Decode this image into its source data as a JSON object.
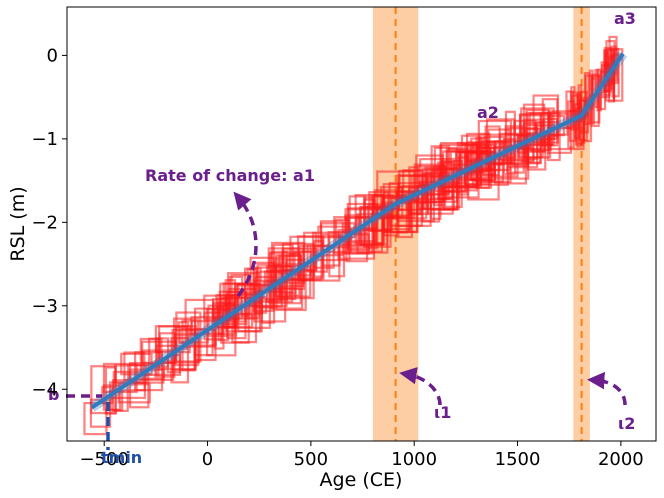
{
  "chart_data": {
    "type": "line",
    "title": "",
    "xlabel": "Age (CE)",
    "ylabel": "RSL (m)",
    "xlim": [
      -680,
      2170
    ],
    "ylim": [
      -4.62,
      0.58
    ],
    "xticks": [
      -500,
      0,
      500,
      1000,
      1500,
      2000
    ],
    "xtick_labels": [
      "−500",
      "0",
      "500",
      "1000",
      "1500",
      "2000"
    ],
    "yticks": [
      0,
      -1,
      -2,
      -3,
      -4
    ],
    "ytick_labels": [
      "0",
      "−1",
      "−2",
      "−3",
      "−4"
    ],
    "grid": false,
    "series": [
      {
        "kind": "piecewise-linear-fit",
        "x": [
          -560,
          910,
          1810,
          2010
        ],
        "y": [
          -4.22,
          -1.78,
          -0.72,
          0.02
        ]
      }
    ],
    "change_points": [
      {
        "x": 910,
        "band": [
          800,
          1020
        ]
      },
      {
        "x": 1810,
        "band": [
          1770,
          1850
        ]
      }
    ],
    "annotations": {
      "rate_label": "Rate of change: a1",
      "a2": "a2",
      "a3": "a3",
      "b": "b",
      "tmin": "tmin",
      "t1": "ι1",
      "t2": "ι2"
    },
    "colors": {
      "fit_line": "#2f7bbf",
      "data_boxes": "#ff1a1a",
      "band": "#fdc594",
      "change_line": "#ff7f0e",
      "annotation_purple": "#6a1f8c",
      "annotation_blue": "#1f4fa8"
    },
    "observations": {
      "seed": 12345,
      "count": 320,
      "note_x_range": [
        -560,
        2010
      ]
    }
  }
}
